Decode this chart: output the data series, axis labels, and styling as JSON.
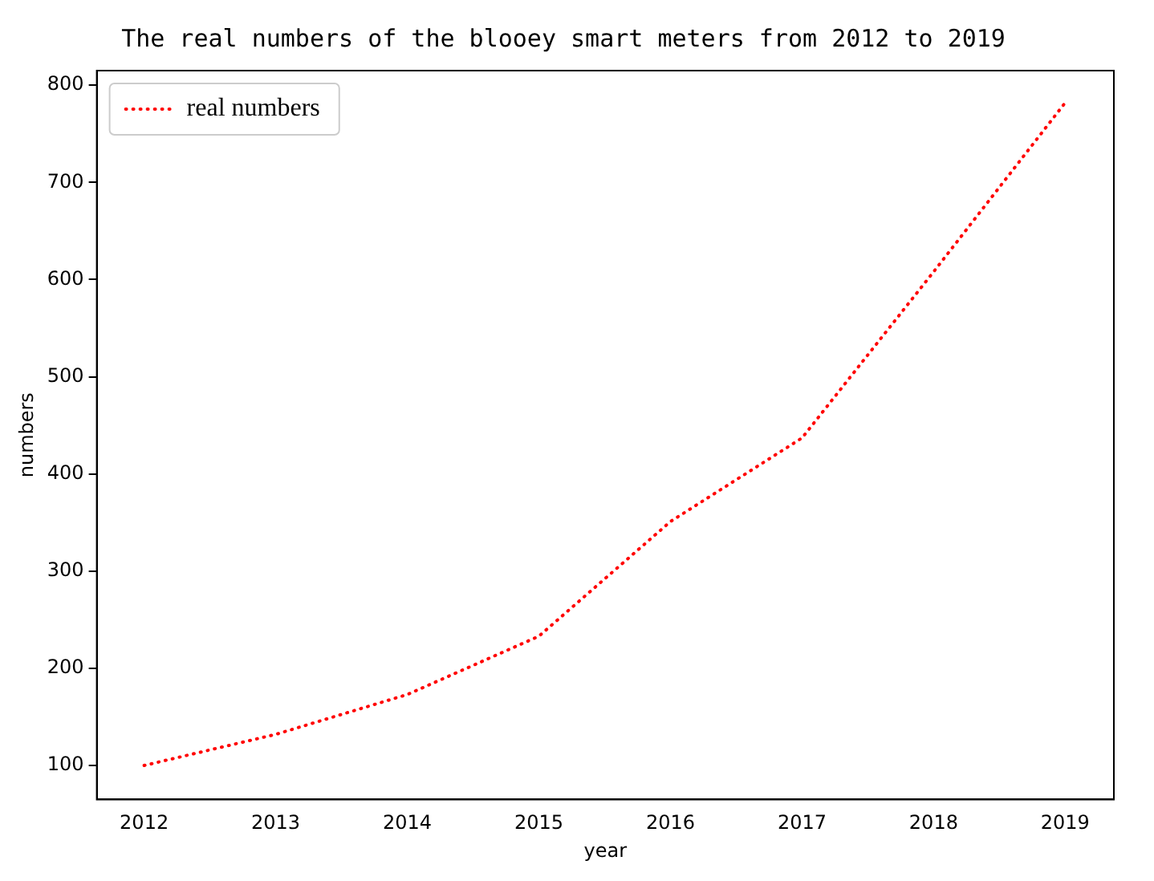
{
  "chart_data": {
    "type": "line",
    "title": "The real numbers of the blooey smart meters from 2012 to 2019",
    "xlabel": "year",
    "ylabel": "numbers",
    "x": [
      2012,
      2013,
      2014,
      2015,
      2016,
      2017,
      2018,
      2019
    ],
    "series": [
      {
        "name": "real numbers",
        "color": "#ff0000",
        "values": [
          100,
          132,
          173,
          233,
          351,
          437,
          608,
          782
        ]
      }
    ],
    "xlim": [
      2011.64,
      2019.37
    ],
    "xticks": [
      2012,
      2013,
      2014,
      2015,
      2016,
      2017,
      2018,
      2019
    ],
    "ylim": [
      65,
      815
    ],
    "yticks": [
      100,
      200,
      300,
      400,
      500,
      600,
      700,
      800
    ],
    "grid": false,
    "legend": "top left",
    "marker": "none",
    "line_style": "dotted"
  }
}
